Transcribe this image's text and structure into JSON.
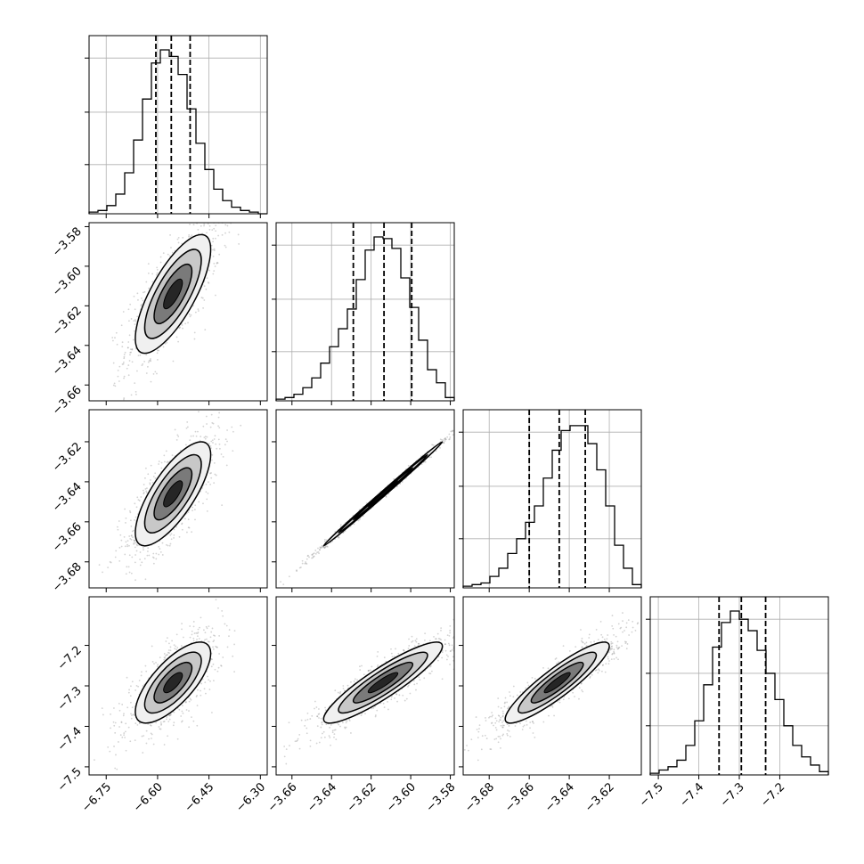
{
  "chart_data": {
    "type": "corner",
    "title": "",
    "parameters": [
      {
        "range": [
          -6.8,
          -6.28
        ],
        "ticks": [
          -6.75,
          -6.6,
          -6.45,
          -6.3
        ],
        "tick_labels": [
          "−6.75",
          "−6.60",
          "−6.45",
          "−6.30"
        ],
        "quantiles": [
          -6.605,
          -6.56,
          -6.505
        ],
        "mean": -6.555,
        "sd": 0.055
      },
      {
        "range": [
          -3.668,
          -3.578
        ],
        "ticks": [
          -3.66,
          -3.64,
          -3.62,
          -3.6,
          -3.58
        ],
        "tick_labels": [
          "−3.66",
          "−3.64",
          "−3.62",
          "−3.60",
          "−3.58"
        ],
        "quantiles": [
          -3.629,
          -3.6135,
          -3.5995
        ],
        "mean": -3.614,
        "sd": 0.015
      },
      {
        "range": [
          -3.693,
          -3.604
        ],
        "ticks": [
          -3.68,
          -3.66,
          -3.64,
          -3.62
        ],
        "tick_labels": [
          "−3.68",
          "−3.66",
          "−3.64",
          "−3.62"
        ],
        "quantiles": [
          -3.66,
          -3.645,
          -3.632
        ],
        "mean": -3.646,
        "sd": 0.013
      },
      {
        "range": [
          -7.52,
          -7.08
        ],
        "ticks": [
          -7.5,
          -7.4,
          -7.3,
          -7.2
        ],
        "tick_labels": [
          "−7.5",
          "−7.4",
          "−7.3",
          "−7.2"
        ],
        "quantiles": [
          -7.35,
          -7.295,
          -7.235
        ],
        "mean": -7.292,
        "sd": 0.05
      }
    ],
    "histograms": [
      {
        "param": 0,
        "counts": [
          1,
          2,
          5,
          12,
          25,
          45,
          70,
          92,
          100,
          96,
          85,
          64,
          43,
          27,
          15,
          8,
          4,
          2,
          1,
          0
        ]
      },
      {
        "param": 1,
        "counts": [
          1,
          2,
          4,
          8,
          14,
          23,
          33,
          44,
          56,
          74,
          92,
          100,
          99,
          93,
          75,
          57,
          37,
          19,
          11,
          2
        ]
      },
      {
        "param": 2,
        "counts": [
          1,
          2,
          3,
          7,
          12,
          21,
          30,
          40,
          50,
          67,
          84,
          96,
          99,
          99,
          88,
          72,
          50,
          26,
          12,
          2
        ]
      },
      {
        "param": 3,
        "counts": [
          1,
          3,
          5,
          9,
          18,
          33,
          55,
          78,
          93,
          100,
          95,
          88,
          76,
          62,
          46,
          30,
          18,
          11,
          6,
          2
        ]
      }
    ],
    "pairs": [
      {
        "x": 0,
        "y": 1,
        "correlation": 0.75
      },
      {
        "x": 0,
        "y": 2,
        "correlation": 0.75
      },
      {
        "x": 1,
        "y": 2,
        "correlation": 0.998
      },
      {
        "x": 0,
        "y": 3,
        "correlation": 0.72
      },
      {
        "x": 1,
        "y": 3,
        "correlation": 0.9
      },
      {
        "x": 2,
        "y": 3,
        "correlation": 0.9
      }
    ],
    "contour_levels": [
      0.5,
      1.0,
      1.5,
      2.0
    ],
    "grid": true,
    "colors": {
      "line": "#000000",
      "grid": "#b0b0b0",
      "points": "#808080"
    }
  }
}
